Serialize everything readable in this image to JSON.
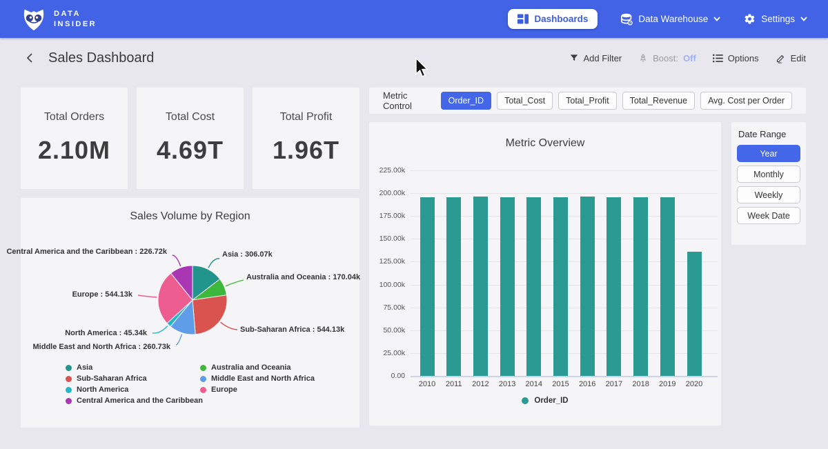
{
  "navbar": {
    "brand": {
      "line1": "DATA",
      "line2": "INSIDER"
    },
    "dashboards_label": "Dashboards",
    "data_warehouse_label": "Data Warehouse",
    "settings_label": "Settings"
  },
  "header": {
    "title": "Sales Dashboard",
    "add_filter_label": "Add Filter",
    "boost_label": "Boost:",
    "boost_state": "Off",
    "options_label": "Options",
    "edit_label": "Edit"
  },
  "kpis": [
    {
      "label": "Total Orders",
      "value": "2.10M"
    },
    {
      "label": "Total Cost",
      "value": "4.69T"
    },
    {
      "label": "Total Profit",
      "value": "1.96T"
    }
  ],
  "metric_control": {
    "label": "Metric Control",
    "options": [
      "Order_ID",
      "Total_Cost",
      "Total_Profit",
      "Total_Revenue",
      "Avg. Cost per Order"
    ],
    "selected": "Order_ID"
  },
  "date_range": {
    "label": "Date Range",
    "options": [
      "Year",
      "Monthly",
      "Weekly",
      "Week Date"
    ],
    "selected": "Year"
  },
  "chart_data": [
    {
      "type": "pie",
      "title": "Sales Volume by Region",
      "value_unit": "k",
      "label_separator": " : ",
      "legend_position": "bottom",
      "slices": [
        {
          "name": "Asia",
          "value": 306.07,
          "color": "#21958c"
        },
        {
          "name": "Australia and Oceania",
          "value": 170.04,
          "color": "#3eb83c"
        },
        {
          "name": "Sub-Saharan Africa",
          "value": 544.13,
          "color": "#d9534f"
        },
        {
          "name": "Middle East and North Africa",
          "value": 260.73,
          "color": "#5f9de8"
        },
        {
          "name": "North America",
          "value": 45.34,
          "color": "#26b7c7"
        },
        {
          "name": "Europe",
          "value": 544.13,
          "color": "#ee5d90"
        },
        {
          "name": "Central America and the Caribbean",
          "value": 226.72,
          "color": "#a937b3"
        }
      ]
    },
    {
      "type": "bar",
      "title": "Metric Overview",
      "categories": [
        "2010",
        "2011",
        "2012",
        "2013",
        "2014",
        "2015",
        "2016",
        "2017",
        "2018",
        "2019",
        "2020"
      ],
      "series": [
        {
          "name": "Order_ID",
          "color": "#2b9a92",
          "values": [
            195900,
            195800,
            196500,
            195700,
            195500,
            195700,
            196600,
            195800,
            195600,
            195800,
            136200
          ]
        }
      ],
      "xlabel": "",
      "ylabel": "",
      "ylim": [
        0,
        225000
      ],
      "ytick_step": 25000,
      "grid": true,
      "legend_position": "bottom"
    }
  ],
  "colors": {
    "navbar_blue": "#4263e6",
    "accent_blue": "#4466e8",
    "boost_off": "#9fb0f2",
    "bar_teal": "#2b9a92"
  }
}
